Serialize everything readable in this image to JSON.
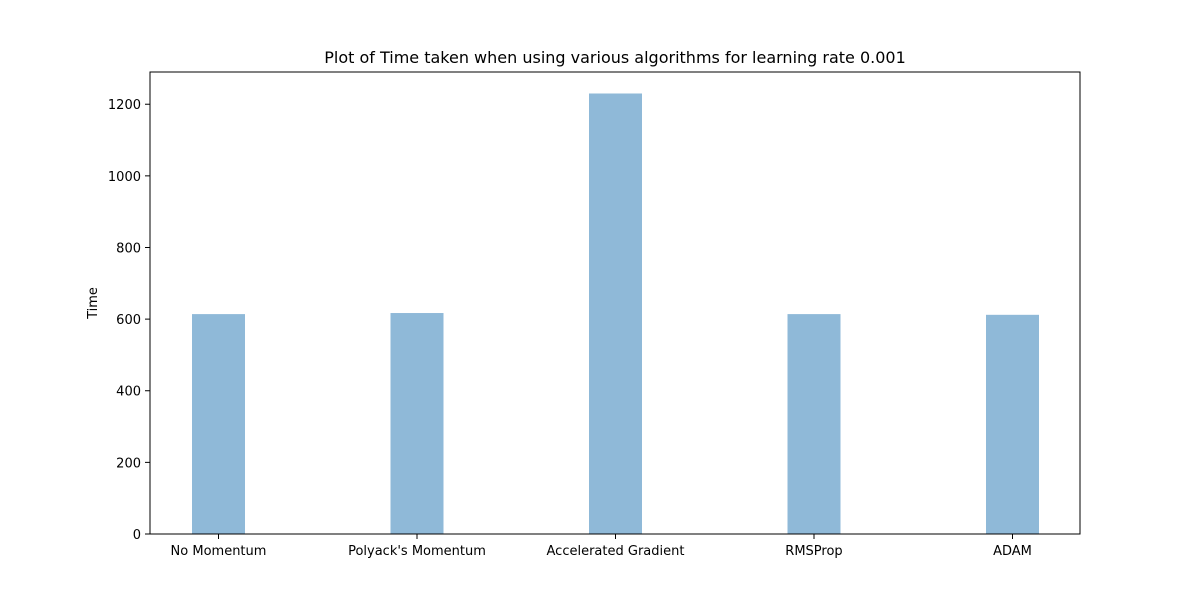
{
  "chart_data": {
    "type": "bar",
    "title": "Plot of Time taken when using various algorithms for learning rate 0.001",
    "xlabel": "",
    "ylabel": "Time",
    "categories": [
      "No Momentum",
      "Polyack's Momentum",
      "Accelerated Gradient",
      "RMSProp",
      "ADAM"
    ],
    "values": [
      614,
      617,
      1230,
      614,
      612
    ],
    "ylim": [
      0,
      1290
    ],
    "yticks": [
      0,
      200,
      400,
      600,
      800,
      1000,
      1200
    ],
    "bar_color": "#8fb9d8",
    "grid": false,
    "legend": "none"
  }
}
